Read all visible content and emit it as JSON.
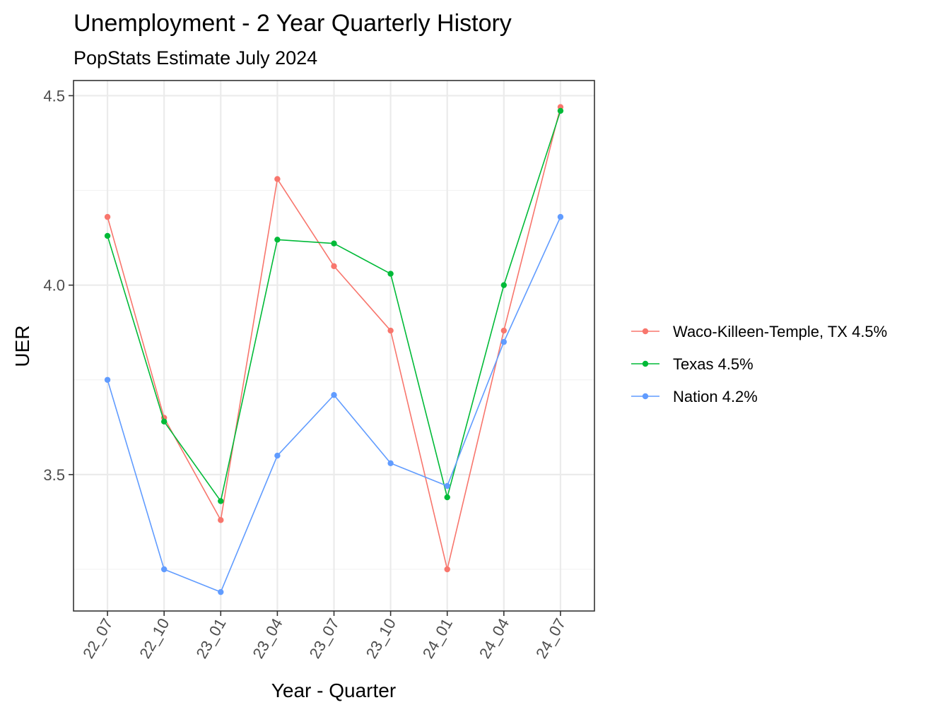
{
  "chart_data": {
    "type": "line",
    "title": "Unemployment - 2 Year Quarterly History",
    "subtitle": "PopStats Estimate July 2024",
    "xlabel": "Year - Quarter",
    "ylabel": "UER",
    "categories": [
      "22_07",
      "22_10",
      "23_01",
      "23_04",
      "23_07",
      "23_10",
      "24_01",
      "24_04",
      "24_07"
    ],
    "ylim": [
      3.14,
      4.54
    ],
    "y_ticks": [
      "3.5",
      "4.0",
      "4.5"
    ],
    "grid": true,
    "legend_position": "right",
    "series": [
      {
        "name": "Waco-Killeen-Temple, TX 4.5%",
        "color": "#f8766d",
        "values": [
          4.18,
          3.65,
          3.38,
          4.28,
          4.05,
          3.88,
          3.25,
          3.88,
          4.47
        ]
      },
      {
        "name": "Texas 4.5%",
        "color": "#00ba38",
        "values": [
          4.13,
          3.64,
          3.43,
          4.12,
          4.11,
          4.03,
          3.44,
          4.0,
          4.46
        ]
      },
      {
        "name": "Nation 4.2%",
        "color": "#619cff",
        "values": [
          3.75,
          3.25,
          3.19,
          3.55,
          3.71,
          3.53,
          3.47,
          3.85,
          4.18
        ]
      }
    ]
  }
}
